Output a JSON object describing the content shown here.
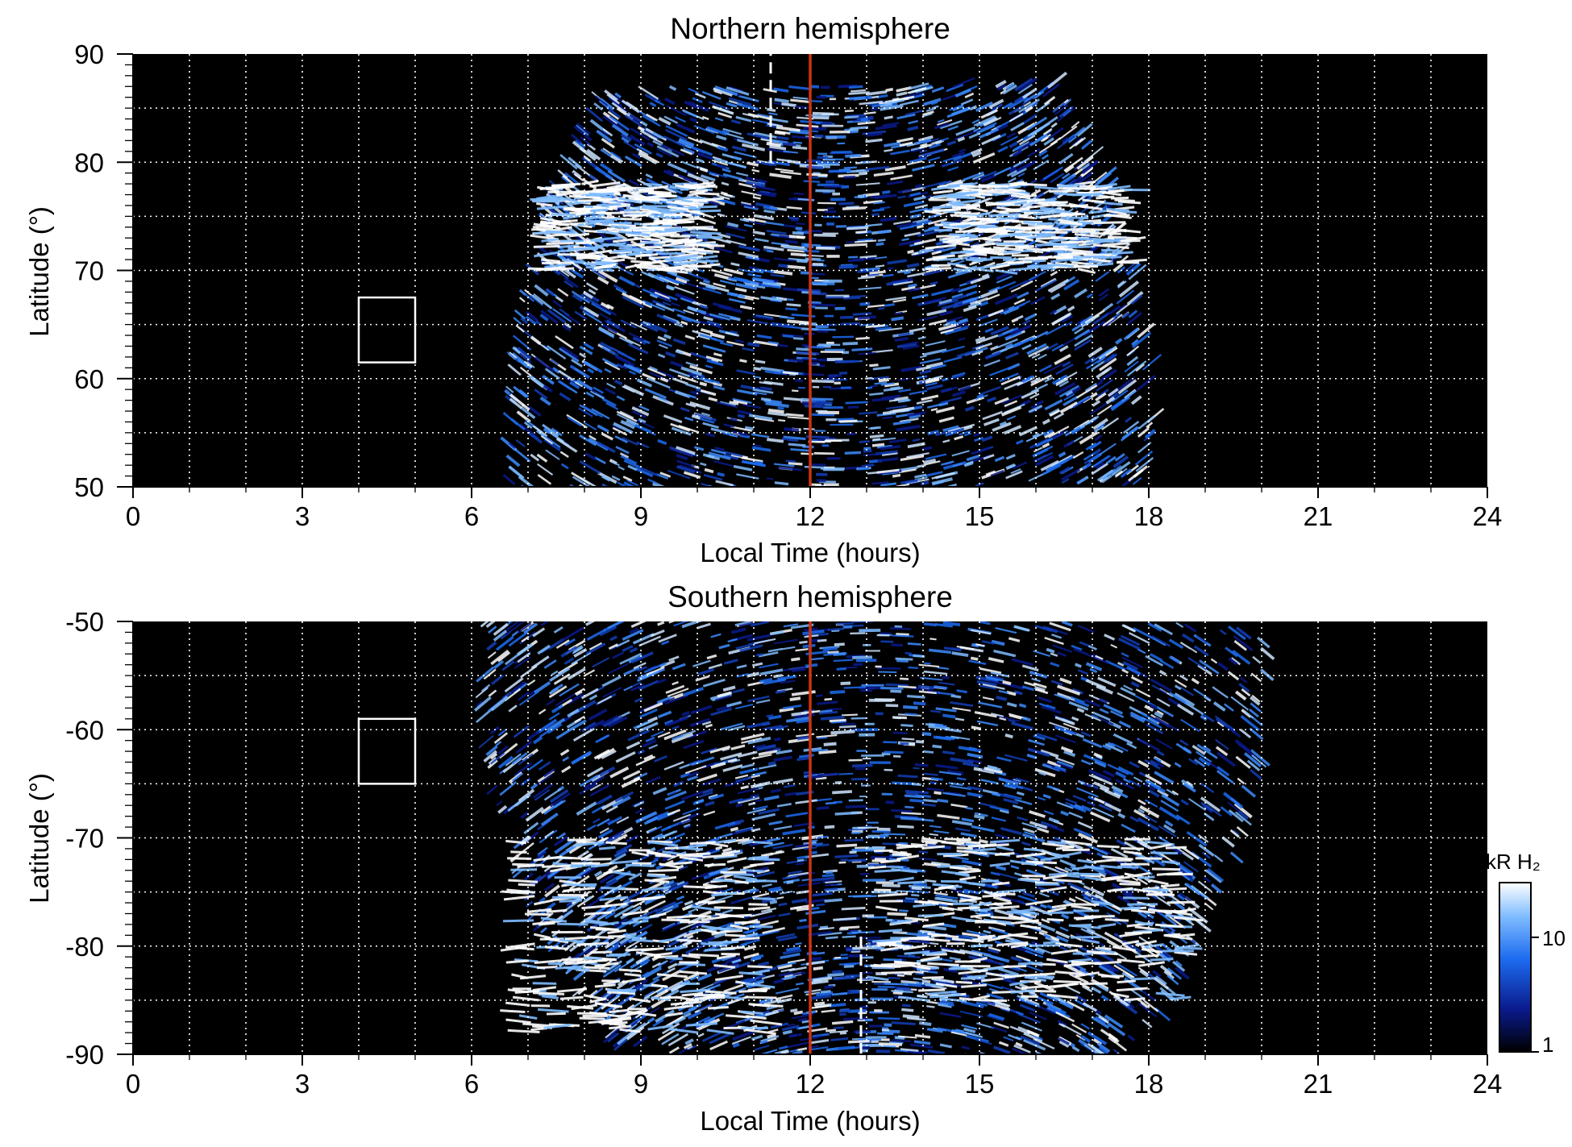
{
  "chart_data": [
    {
      "type": "heatmap",
      "title": "Northern hemisphere",
      "xlabel": "Local Time (hours)",
      "ylabel": "Latitude (°)",
      "xlim": [
        0,
        24
      ],
      "ylim": [
        50,
        90
      ],
      "x_ticks": [
        "0",
        "3",
        "6",
        "9",
        "12",
        "15",
        "18",
        "21",
        "24"
      ],
      "y_ticks": [
        "50",
        "60",
        "70",
        "80",
        "90"
      ],
      "y_tick_values": [
        50,
        60,
        70,
        80,
        90
      ],
      "grid": true,
      "red_line_x": 12,
      "dashed_line": {
        "x": 11.3,
        "y_range": [
          80,
          90
        ]
      },
      "box": {
        "x_range": [
          4,
          5
        ],
        "y_range": [
          61.5,
          67.5
        ]
      },
      "emission_extent_x": [
        6.5,
        18
      ],
      "bright_arcs": [
        {
          "x_range": [
            7,
            10
          ],
          "y_range": [
            70,
            78
          ]
        },
        {
          "x_range": [
            14,
            17.5
          ],
          "y_range": [
            70,
            78
          ]
        }
      ]
    },
    {
      "type": "heatmap",
      "title": "Southern hemisphere",
      "xlabel": "Local Time (hours)",
      "ylabel": "Latitude (°)",
      "xlim": [
        0,
        24
      ],
      "ylim": [
        -90,
        -50
      ],
      "x_ticks": [
        "0",
        "3",
        "6",
        "9",
        "12",
        "15",
        "18",
        "21",
        "24"
      ],
      "y_ticks": [
        "-50",
        "-60",
        "-70",
        "-80",
        "-90"
      ],
      "y_tick_values": [
        -50,
        -60,
        -70,
        -80,
        -90
      ],
      "grid": true,
      "red_line_x": 12,
      "dashed_line": {
        "x": 12.9,
        "y_range": [
          -90,
          -79
        ]
      },
      "box": {
        "x_range": [
          4,
          5
        ],
        "y_range": [
          -65,
          -59
        ]
      },
      "emission_extent_x": [
        6,
        20
      ],
      "bright_arcs": [
        {
          "x_range": [
            6.5,
            11
          ],
          "y_range": [
            -88,
            -70
          ]
        },
        {
          "x_range": [
            13,
            18.5
          ],
          "y_range": [
            -85,
            -70
          ]
        }
      ]
    }
  ],
  "colorbar": {
    "label": "kR H₂",
    "ticks": [
      "10",
      "1"
    ],
    "tick_values": [
      10,
      1
    ],
    "range": [
      1,
      30
    ],
    "scale": "log",
    "colors": [
      "#000000",
      "#0a1a8c",
      "#1d6cf0",
      "#7fbcff",
      "#ffffff"
    ]
  },
  "colors": {
    "background": "#000000",
    "grid": "#ffffff",
    "red_line": "#cc3311"
  }
}
